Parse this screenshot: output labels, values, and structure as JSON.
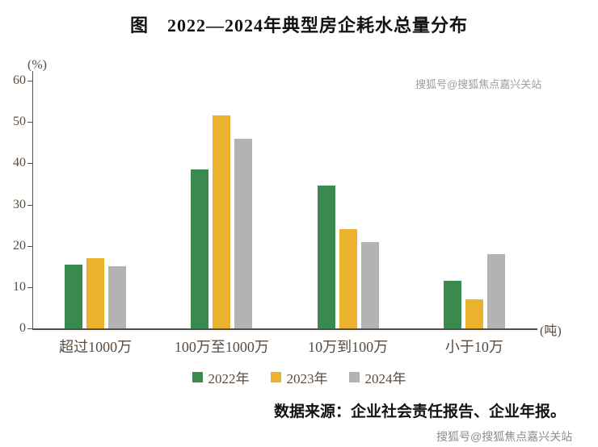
{
  "title": "图　2022—2024年典型房企耗水总量分布",
  "watermark_top": "搜狐号@搜狐焦点嘉兴关站",
  "watermark_bottom": "搜狐号@搜狐焦点嘉兴关站",
  "source": "数据来源：企业社会责任报告、企业年报。",
  "chart_data": {
    "type": "bar",
    "title": "图　2022—2024年典型房企耗水总量分布",
    "unit_y": "(%)",
    "unit_x": "(吨)",
    "categories": [
      "超过1000万",
      "100万至1000万",
      "10万到100万",
      "小于10万"
    ],
    "series": [
      {
        "name": "2022年",
        "color": "#3a8a50",
        "values": [
          15.5,
          38.5,
          34.5,
          11.5
        ]
      },
      {
        "name": "2023年",
        "color": "#ecb22e",
        "values": [
          17,
          51.5,
          24,
          7
        ]
      },
      {
        "name": "2024年",
        "color": "#b3b3b3",
        "values": [
          15,
          46,
          21,
          18
        ]
      }
    ],
    "ylim": [
      0,
      60
    ],
    "yticks": [
      0,
      10,
      20,
      30,
      40,
      50,
      60
    ],
    "grid": false,
    "legend_position": "bottom"
  },
  "colors": {
    "axis": "#55504a",
    "axis_text": "#5a4b3e",
    "title_text": "#121212",
    "watermark": "#9c9c9c"
  }
}
